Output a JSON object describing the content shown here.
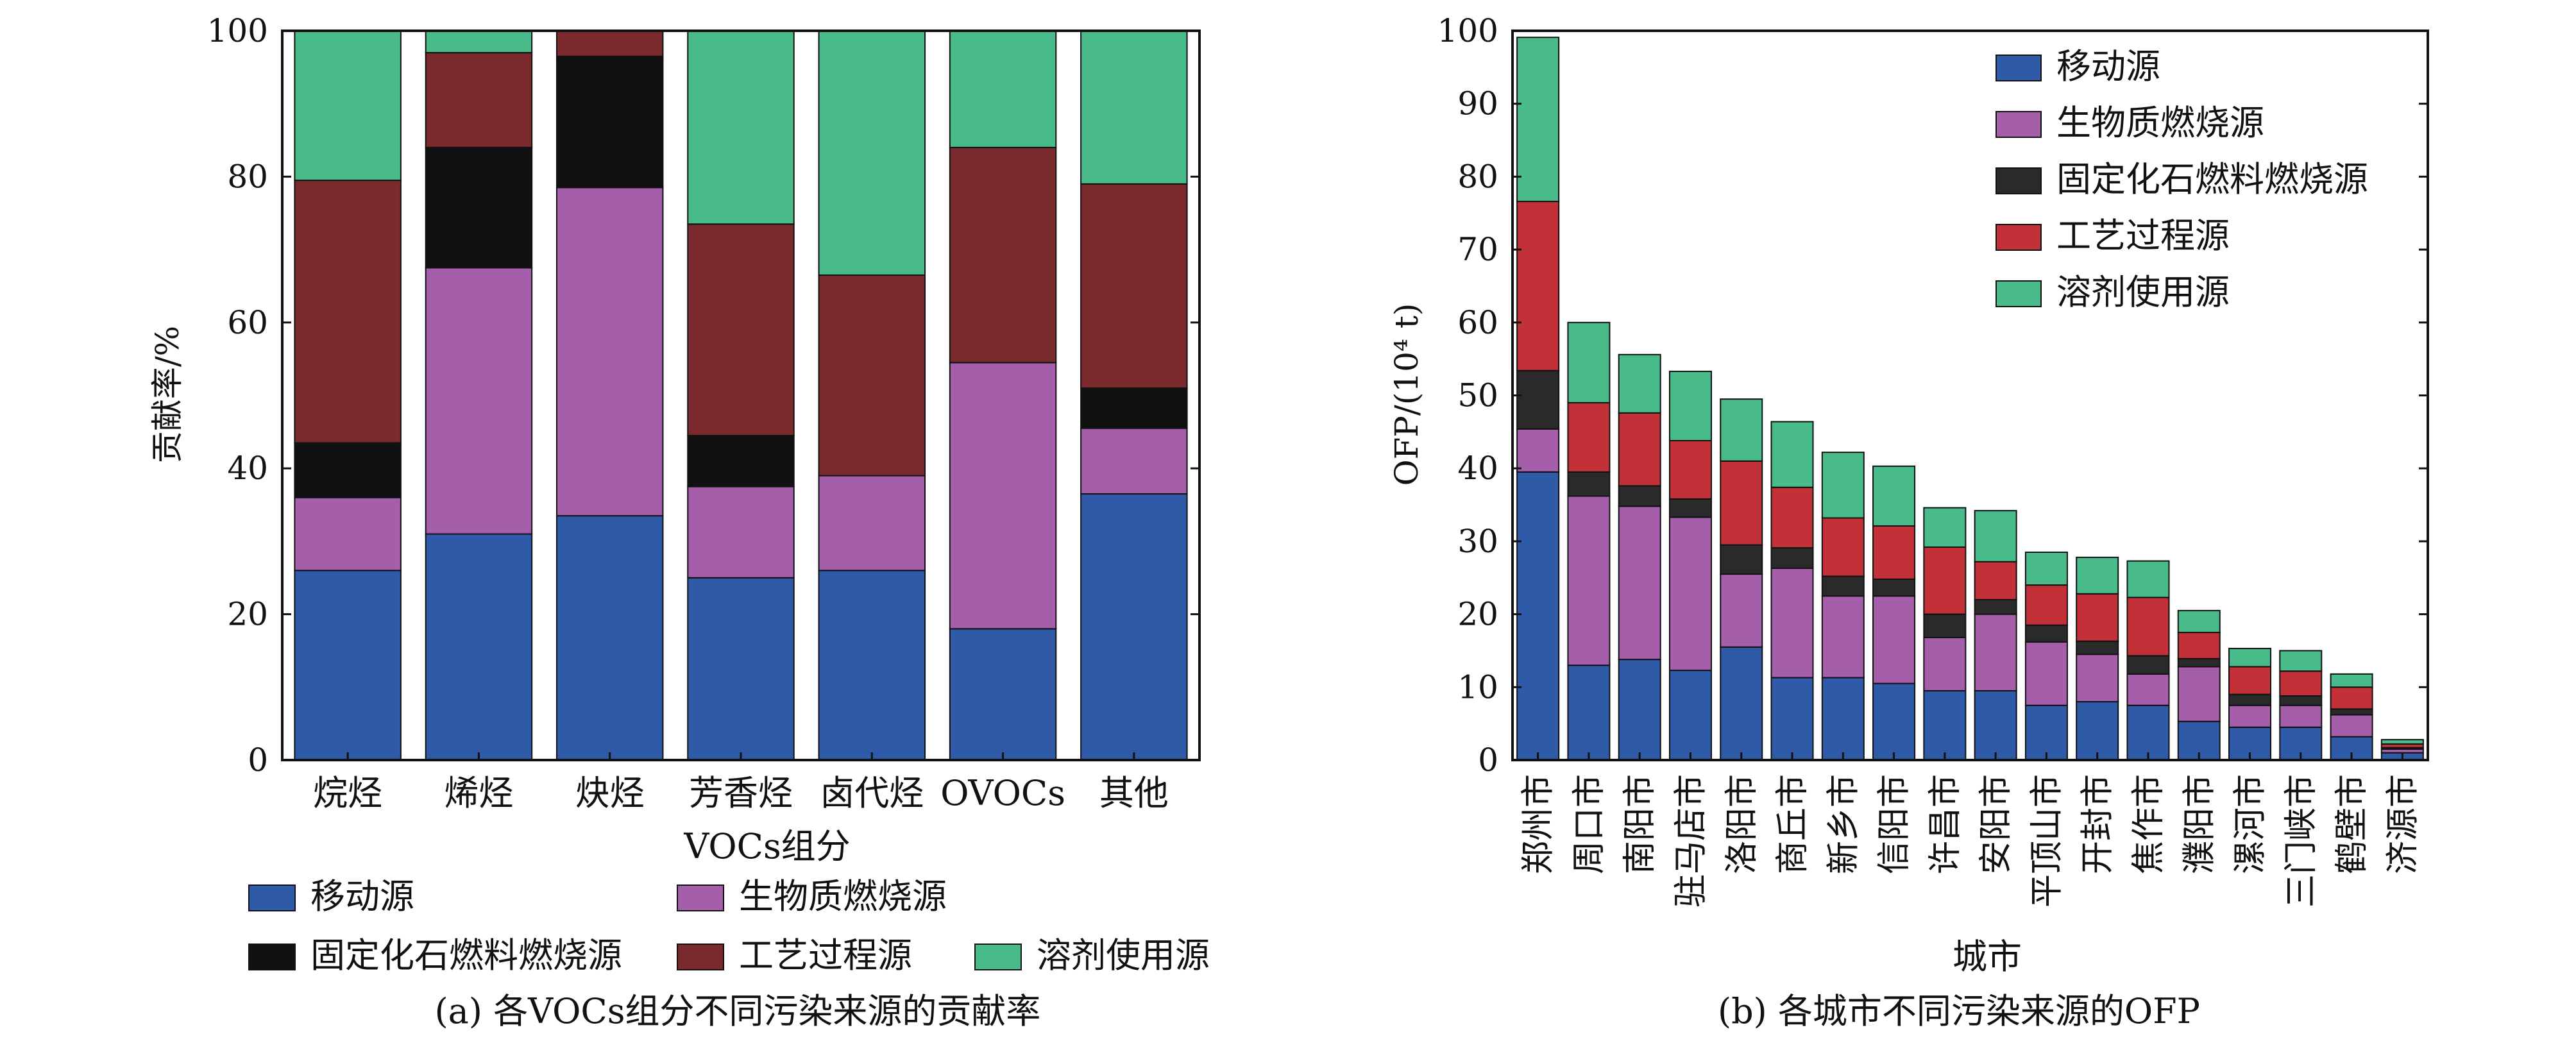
{
  "colors": {
    "移动源": "#2f5aa8",
    "生物质燃烧源": "#a55ea9",
    "固定化石燃料燃烧源": "#111111",
    "工艺过程源": "#7a2a2d",
    "溶剂使用源": "#49bb8a"
  },
  "colors_b": {
    "移动源": "#2f5aa8",
    "生物质燃烧源": "#a55ea9",
    "固定化石燃料燃烧源": "#2a2a2a",
    "工艺过程源": "#c23138",
    "溶剂使用源": "#49bb8a"
  },
  "chart_data": [
    {
      "type": "bar",
      "stacked": true,
      "caption": "(a) 各VOCs组分不同污染来源的贡献率",
      "xlabel": "VOCs组分",
      "ylabel": "贡献率/%",
      "ylim": [
        0,
        100
      ],
      "yticks": [
        0,
        20,
        40,
        60,
        80,
        100
      ],
      "legend_position": "bottom",
      "categories": [
        "烷烃",
        "烯烃",
        "炔烃",
        "芳香烃",
        "卤代烃",
        "OVOCs",
        "其他"
      ],
      "series": [
        {
          "name": "移动源",
          "values": [
            26,
            31,
            33.5,
            25,
            26,
            18,
            36.5
          ]
        },
        {
          "name": "生物质燃烧源",
          "values": [
            10,
            36.5,
            45,
            12.5,
            13,
            36.5,
            9
          ]
        },
        {
          "name": "固定化石燃料燃烧源",
          "values": [
            7.5,
            16.5,
            18,
            7,
            0,
            0,
            5.5
          ]
        },
        {
          "name": "工艺过程源",
          "values": [
            36,
            13,
            3.5,
            29,
            27.5,
            29.5,
            28
          ]
        },
        {
          "name": "溶剂使用源",
          "values": [
            20.5,
            3,
            0,
            26.5,
            33.5,
            16,
            21
          ]
        }
      ]
    },
    {
      "type": "bar",
      "stacked": true,
      "caption": "(b) 各城市不同污染来源的OFP",
      "xlabel": "城市",
      "ylabel": "OFP/(10⁴ t)",
      "ylim": [
        0,
        100
      ],
      "yticks": [
        0,
        10,
        20,
        30,
        40,
        50,
        60,
        70,
        80,
        90,
        100
      ],
      "legend_position": "top-right",
      "categories": [
        "郑州市",
        "周口市",
        "南阳市",
        "驻马店市",
        "洛阳市",
        "商丘市",
        "新乡市",
        "信阳市",
        "许昌市",
        "安阳市",
        "平顶山市",
        "开封市",
        "焦作市",
        "濮阳市",
        "漯河市",
        "三门峡市",
        "鹤壁市",
        "济源市"
      ],
      "series": [
        {
          "name": "移动源",
          "values": [
            39.5,
            13,
            13.8,
            12.3,
            15.5,
            11.3,
            11.3,
            10.5,
            9.5,
            9.5,
            7.5,
            8,
            7.5,
            5.3,
            4.5,
            4.5,
            3.2,
            1
          ]
        },
        {
          "name": "生物质燃烧源",
          "values": [
            5.9,
            23.2,
            21,
            21,
            10,
            15,
            11.2,
            12,
            7.3,
            10.5,
            8.7,
            6.5,
            4.3,
            7.5,
            3,
            3,
            3,
            0.5
          ]
        },
        {
          "name": "固定化石燃料燃烧源",
          "values": [
            8,
            3.3,
            2.8,
            2.5,
            4,
            2.8,
            2.7,
            2.3,
            3.2,
            2,
            2.3,
            1.8,
            2.5,
            1.1,
            1.5,
            1.3,
            0.8,
            0.2
          ]
        },
        {
          "name": "工艺过程源",
          "values": [
            23.2,
            9.5,
            10,
            8,
            11.5,
            8.3,
            8,
            7.3,
            9.2,
            5.2,
            5.5,
            6.5,
            8,
            3.6,
            3.8,
            3.4,
            3,
            0.5
          ]
        },
        {
          "name": "溶剂使用源",
          "values": [
            22.5,
            11,
            8,
            9.5,
            8.5,
            9,
            9,
            8.2,
            5.4,
            7,
            4.5,
            5,
            5,
            3,
            2.5,
            2.8,
            1.8,
            0.6
          ]
        }
      ]
    }
  ]
}
